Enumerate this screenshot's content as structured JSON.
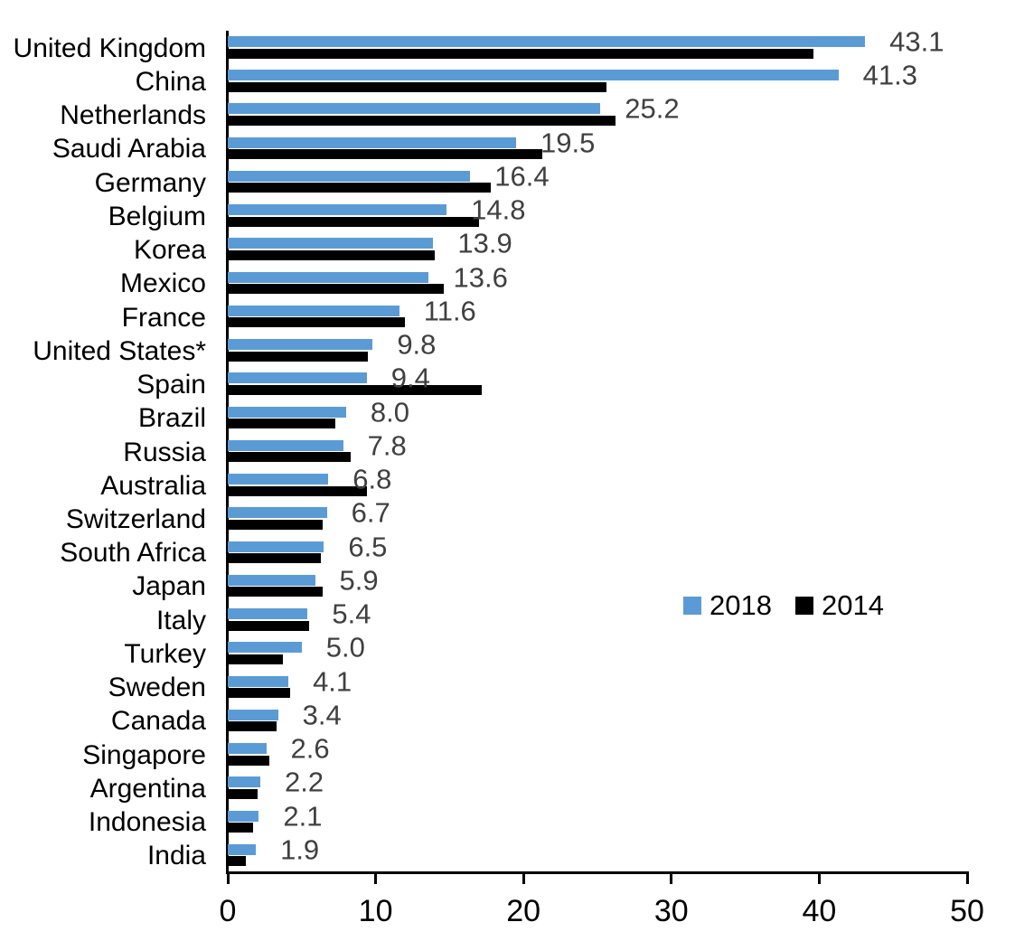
{
  "chart_data": {
    "type": "bar",
    "orientation": "horizontal",
    "title": "",
    "categories": [
      "United Kingdom",
      "China",
      "Netherlands",
      "Saudi Arabia",
      "Germany",
      "Belgium",
      "Korea",
      "Mexico",
      "France",
      "United States*",
      "Spain",
      "Brazil",
      "Russia",
      "Australia",
      "Switzerland",
      "South Africa",
      "Japan",
      "Italy",
      "Turkey",
      "Sweden",
      "Canada",
      "Singapore",
      "Argentina",
      "Indonesia",
      "India"
    ],
    "series": [
      {
        "name": "2018",
        "color": "#5B9BD5",
        "values": [
          43.1,
          41.3,
          25.2,
          19.5,
          16.4,
          14.8,
          13.9,
          13.6,
          11.6,
          9.8,
          9.4,
          8.0,
          7.8,
          6.8,
          6.7,
          6.5,
          5.9,
          5.4,
          5.0,
          4.1,
          3.4,
          2.6,
          2.2,
          2.1,
          1.9
        ]
      },
      {
        "name": "2014",
        "color": "#000000",
        "values": [
          39.6,
          25.6,
          26.2,
          21.3,
          17.8,
          17.0,
          14.0,
          14.6,
          12.0,
          9.5,
          17.2,
          7.3,
          8.3,
          9.4,
          6.4,
          6.3,
          6.4,
          5.5,
          3.7,
          4.2,
          3.3,
          2.8,
          2.0,
          1.7,
          1.2
        ]
      }
    ],
    "data_labels": {
      "labeled_series": "2018",
      "values": [
        "43.1",
        "41.3",
        "25.2",
        "19.5",
        "16.4",
        "14.8",
        "13.9",
        "13.6",
        "11.6",
        "9.8",
        "9.4",
        "8.0",
        "7.8",
        "6.8",
        "6.7",
        "6.5",
        "5.9",
        "5.4",
        "5.0",
        "4.1",
        "3.4",
        "2.6",
        "2.2",
        "2.1",
        "1.9"
      ]
    },
    "xlim": [
      0,
      50
    ],
    "x_ticks": [
      "0",
      "10",
      "20",
      "30",
      "40",
      "50"
    ],
    "legend": {
      "position": "middle-right",
      "entries": [
        "2018",
        "2014"
      ]
    },
    "grid": "off",
    "colors": {
      "bar_2018": "#5B9BD5",
      "bar_2014": "#000000",
      "data_label": "#404040",
      "axis": "#000000",
      "category_label": "#000000"
    }
  }
}
